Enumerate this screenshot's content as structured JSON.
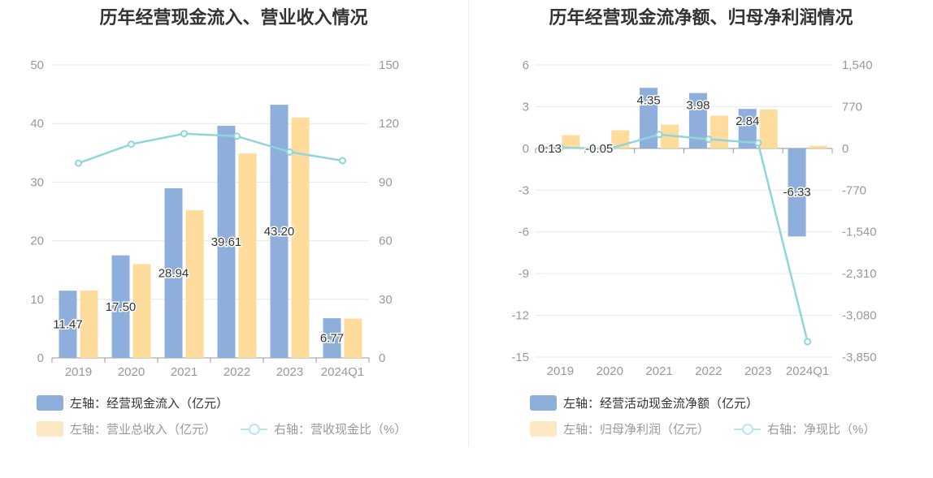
{
  "left_chart": {
    "title": "历年经营现金流入、营业收入情况",
    "legend": [
      {
        "label": "左轴：经营现金流入（亿元）",
        "active": true
      },
      {
        "label": "左轴：营业总收入（亿元）",
        "active": false
      },
      {
        "label": "右轴：营收现金比（%）",
        "active": false
      }
    ]
  },
  "right_chart": {
    "title": "历年经营现金流净额、归母净利润情况",
    "legend": [
      {
        "label": "左轴：经营活动现金流净额（亿元）",
        "active": true
      },
      {
        "label": "左轴：归母净利润（亿元）",
        "active": false
      },
      {
        "label": "右轴：净现比（%）",
        "active": false
      }
    ]
  },
  "chart_data": [
    {
      "type": "bar",
      "title": "历年经营现金流入、营业收入情况",
      "categories": [
        "2019",
        "2020",
        "2021",
        "2022",
        "2023",
        "2024Q1"
      ],
      "left_axis": {
        "min": 0,
        "max": 50,
        "ticks": [
          "0",
          "10",
          "20",
          "30",
          "40",
          "50"
        ],
        "tick_values": [
          0,
          10,
          20,
          30,
          40,
          50
        ]
      },
      "right_axis": {
        "min": 0,
        "max": 150,
        "ticks": [
          "0",
          "30",
          "60",
          "90",
          "120",
          "150"
        ],
        "tick_values": [
          0,
          30,
          60,
          90,
          120,
          150
        ]
      },
      "grid": true,
      "legend_position": "bottom-left",
      "series": [
        {
          "name": "左轴：经营现金流入（亿元）",
          "kind": "bar",
          "axis": "left",
          "color": "#8eaedb",
          "values": [
            11.47,
            17.5,
            28.94,
            39.61,
            43.2,
            6.77
          ],
          "labels": [
            "11.47",
            "17.50",
            "28.94",
            "39.61",
            "43.20",
            "6.77"
          ]
        },
        {
          "name": "左轴：营业总收入（亿元）",
          "kind": "bar",
          "axis": "left",
          "color": "#ffdb9c",
          "values": [
            11.5,
            16.0,
            25.2,
            34.9,
            41.0,
            6.7
          ]
        },
        {
          "name": "右轴：营收现金比（%）",
          "kind": "line",
          "axis": "right",
          "color": "#8fd6dc",
          "values": [
            99.7,
            109.4,
            114.8,
            113.5,
            105.4,
            101.0
          ]
        }
      ]
    },
    {
      "type": "bar",
      "title": "历年经营现金流净额、归母净利润情况",
      "categories": [
        "2019",
        "2020",
        "2021",
        "2022",
        "2023",
        "2024Q1"
      ],
      "left_axis": {
        "min": -15,
        "max": 6,
        "ticks": [
          "-15",
          "-12",
          "-9",
          "-6",
          "-3",
          "0",
          "3",
          "6"
        ],
        "tick_values": [
          -15,
          -12,
          -9,
          -6,
          -3,
          0,
          3,
          6
        ]
      },
      "right_axis": {
        "min": -3850,
        "max": 1540,
        "ticks": [
          "-3,850",
          "-3,080",
          "-2,310",
          "-1,540",
          "-770",
          "0",
          "770",
          "1,540"
        ],
        "tick_values": [
          -3850,
          -3080,
          -2310,
          -1540,
          -770,
          0,
          770,
          1540
        ]
      },
      "grid": true,
      "legend_position": "bottom-left",
      "series": [
        {
          "name": "左轴：经营活动现金流净额（亿元）",
          "kind": "bar",
          "axis": "left",
          "color": "#8eaedb",
          "values": [
            0.13,
            -0.05,
            4.35,
            3.98,
            2.84,
            -6.33
          ],
          "labels": [
            "0.13",
            "-0.05",
            "4.35",
            "3.98",
            "2.84",
            "-6.33"
          ]
        },
        {
          "name": "左轴：归母净利润（亿元）",
          "kind": "bar",
          "axis": "left",
          "color": "#ffdb9c",
          "values": [
            0.95,
            1.3,
            1.7,
            2.35,
            2.8,
            0.18
          ]
        },
        {
          "name": "右轴：净现比（%）",
          "kind": "line",
          "axis": "right",
          "color": "#8fd6dc",
          "values": [
            13.7,
            -3.8,
            256,
            169,
            101,
            -3565
          ]
        }
      ]
    }
  ]
}
